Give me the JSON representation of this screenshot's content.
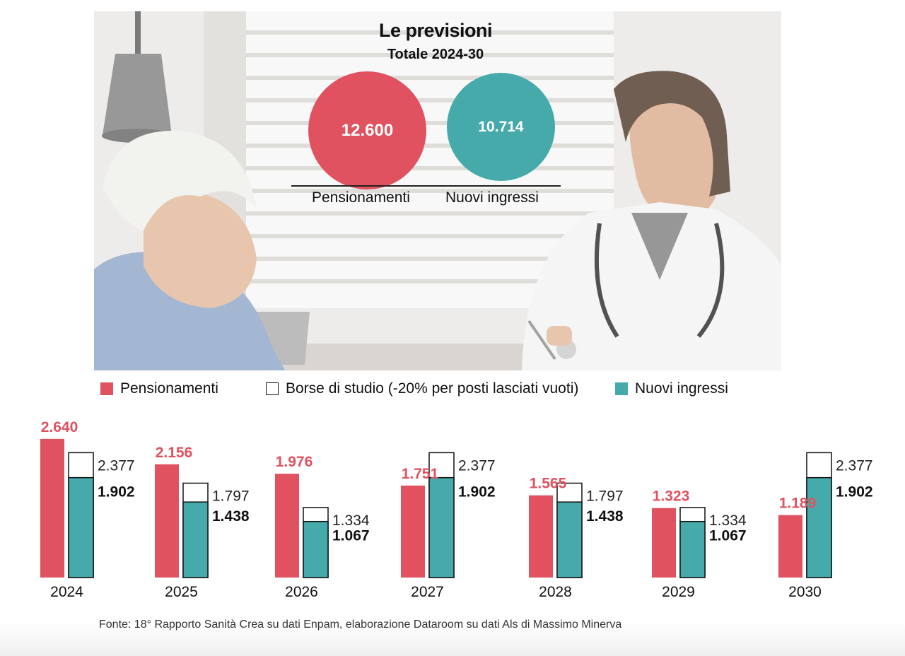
{
  "infobox": {
    "title": "Le previsioni",
    "subtitle": "Totale 2024-30",
    "bubbles": [
      {
        "value": "12.600",
        "label": "Pensionamenti",
        "color": "#e05260"
      },
      {
        "value": "10.714",
        "label": "Nuovi ingressi",
        "color": "#46aaab"
      }
    ]
  },
  "legend": [
    {
      "label": "Pensionamenti",
      "color": "#e05260"
    },
    {
      "label": "Borse di studio (-20% per posti lasciati vuoti)",
      "color": "#ffffff"
    },
    {
      "label": "Nuovi ingressi",
      "color": "#46aaab"
    }
  ],
  "source": "Fonte: 18° Rapporto Sanità Crea su dati Enpam, elaborazione Dataroom su dati Als di Massimo Minerva",
  "chart_data": {
    "type": "bar",
    "categories": [
      "2024",
      "2025",
      "2026",
      "2027",
      "2028",
      "2029",
      "2030"
    ],
    "series": [
      {
        "name": "Pensionamenti",
        "color": "#e05260",
        "values": [
          2640,
          2156,
          1976,
          1751,
          1565,
          1323,
          1189
        ],
        "labels": [
          "2.640",
          "2.156",
          "1.976",
          "1.751",
          "1.565",
          "1.323",
          "1.189"
        ]
      },
      {
        "name": "Borse di studio (-20% per posti lasciati vuoti)",
        "color": "#ffffff",
        "values": [
          2377,
          1797,
          1334,
          2377,
          1797,
          1334,
          2377
        ],
        "labels": [
          "2.377",
          "1.797",
          "1.334",
          "2.377",
          "1.797",
          "1.334",
          "2.377"
        ]
      },
      {
        "name": "Nuovi ingressi",
        "color": "#46aaab",
        "values": [
          1902,
          1438,
          1067,
          1902,
          1438,
          1067,
          1902
        ],
        "labels": [
          "1.902",
          "1.438",
          "1.067",
          "1.902",
          "1.438",
          "1.067",
          "1.902"
        ]
      }
    ],
    "ylim": [
      0,
      2640
    ],
    "grid": false,
    "legend_position": "top-left"
  }
}
